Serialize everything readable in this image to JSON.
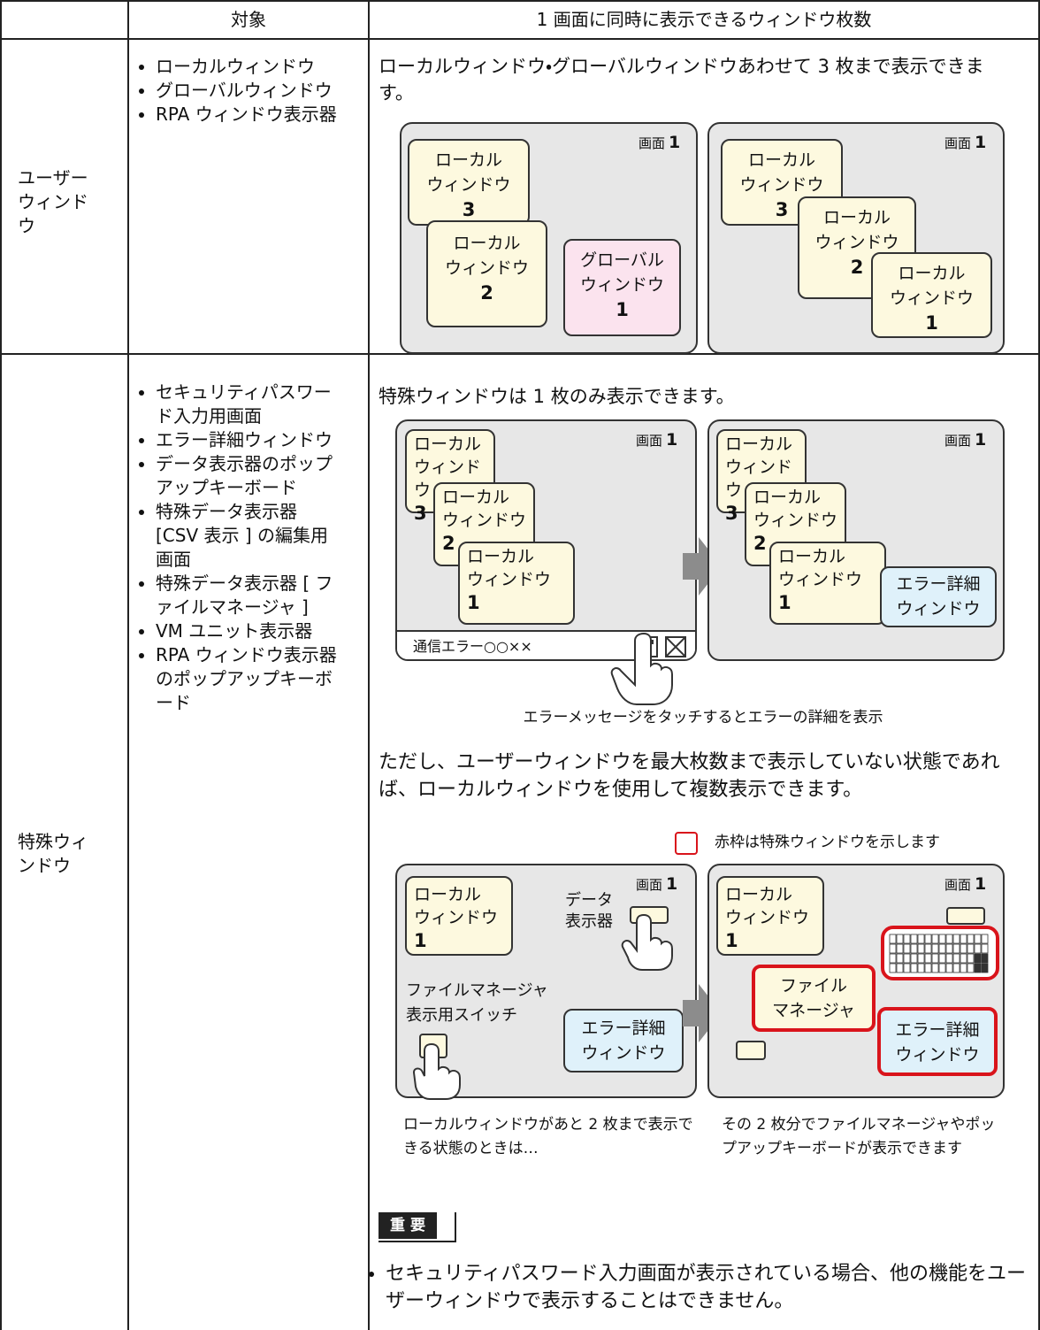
{
  "table": {
    "header": [
      "対象",
      "1 画面に同時に表示できるウィンドウ枚数"
    ],
    "rows": [
      {
        "name": "ユーザーウィンドウ",
        "targets": [
          "ローカルウィンドウ",
          "グローバルウィンドウ",
          "RPA ウィンドウ表示器"
        ],
        "description": "ローカルウィンドウ・グローバルウィンドウあわせて 3 枚まで表示できます。",
        "diagrams": [
          {
            "screen": "画面",
            "screen_no": "1",
            "windows": [
              {
                "lines": [
                  "ローカル",
                  "ウィンドウ"
                ],
                "no": "3"
              },
              {
                "lines": [
                  "ローカル",
                  "ウィンドウ"
                ],
                "no": "2"
              },
              {
                "lines": [
                  "グローバル",
                  "ウィンドウ"
                ],
                "no": "1"
              }
            ]
          },
          {
            "screen": "画面",
            "screen_no": "1",
            "windows": [
              {
                "lines": [
                  "ローカル",
                  "ウィンドウ"
                ],
                "no": "3"
              },
              {
                "lines": [
                  "ローカル",
                  "ウィンドウ"
                ],
                "no": "2"
              },
              {
                "lines": [
                  "ローカル",
                  "ウィンドウ"
                ],
                "no": "1"
              }
            ]
          }
        ]
      },
      {
        "name": "特殊ウィンドウ",
        "targets": [
          "セキュリティパスワード入力用画面",
          "エラー詳細ウィンドウ",
          "データ表示器のポップアップキーボード",
          "特殊データ表示器 [CSV 表示 ] の編集用画面",
          "特殊データ表示器 [ ファイルマネージャ ]",
          "VM ユニット表示器",
          "RPA ウィンドウ表示器のポップアップキーボード"
        ],
        "description": "特殊ウィンドウは 1 枚のみ表示できます。",
        "diagrams": [
          {
            "screen": "画面",
            "screen_no": "1",
            "status_bar": "通信エラー○○××",
            "windows": [
              {
                "lines": [
                  "ローカル",
                  "ウィンドウ"
                ],
                "no": "3"
              },
              {
                "lines": [
                  "ローカル",
                  "ウィンドウ"
                ],
                "no": "2"
              },
              {
                "lines": [
                  "ローカル",
                  "ウィンドウ"
                ],
                "no": "1"
              }
            ]
          },
          {
            "screen": "画面",
            "screen_no": "1",
            "windows": [
              {
                "lines": [
                  "ローカル",
                  "ウィンドウ"
                ],
                "no": "3"
              },
              {
                "lines": [
                  "ローカル",
                  "ウィンドウ"
                ],
                "no": "2"
              },
              {
                "lines": [
                  "ローカル",
                  "ウィンドウ"
                ],
                "no": "1"
              },
              {
                "lines": [
                  "エラー詳細",
                  "ウィンドウ"
                ]
              }
            ]
          }
        ],
        "caption": "エラーメッセージをタッチするとエラーの詳細を表示",
        "note": "ただし、ユーザーウィンドウを最大枚数まで表示していない状態であれば、ローカルウィンドウを使用して複数表示できます。",
        "legend": "赤枠は特殊ウィンドウを示します",
        "diagrams2": [
          {
            "screen": "画面",
            "screen_no": "1",
            "local": {
              "lines": [
                "ローカル",
                "ウィンドウ"
              ],
              "no": "1"
            },
            "data_display": [
              "データ",
              "表示器"
            ],
            "switch_label": [
              "ファイルマネージャ",
              "表示用スイッチ"
            ],
            "error": [
              "エラー詳細",
              "ウィンドウ"
            ]
          },
          {
            "screen": "画面",
            "screen_no": "1",
            "local": {
              "lines": [
                "ローカル",
                "ウィンドウ"
              ],
              "no": "1"
            },
            "file_manager": [
              "ファイル",
              "マネージャ"
            ],
            "error": [
              "エラー詳細",
              "ウィンドウ"
            ]
          }
        ],
        "captions2": [
          "ローカルウィンドウがあと 2 枚まで表示できる状態のときは…",
          "その 2 枚分でファイルマネージャやポップアップキーボードが表示できます"
        ],
        "important_label": "重 要",
        "important_text": "セキュリティパスワード入力画面が表示されている場合、他の機能をユーザーウィンドウで表示することはできません。"
      }
    ]
  }
}
